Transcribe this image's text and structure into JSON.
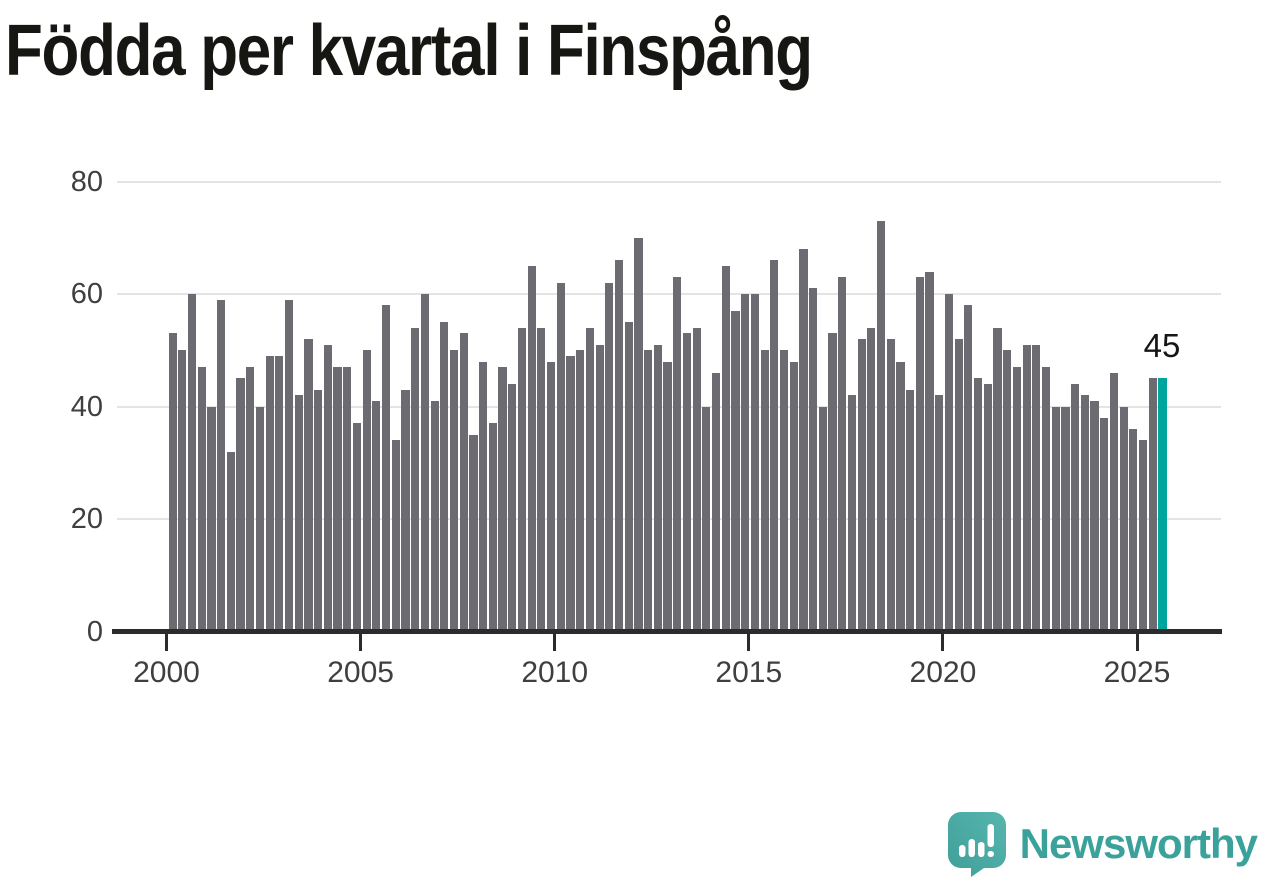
{
  "title": "Födda per kvartal i Finspång",
  "annotation": {
    "latest_value_label": "45"
  },
  "branding": {
    "logo_text": "Newsworthy",
    "logo_icon": "newsworthy-speech-bubble-bar-chart-icon"
  },
  "colors": {
    "bar": "#6c6b71",
    "highlight": "#00a69e",
    "title_text": "#161613",
    "axis_text": "#3f3f3f",
    "gridline": "#e4e4e4",
    "axis_line": "#2b2b2b",
    "logo_teal": "#3aa29b"
  },
  "chart_data": {
    "type": "bar",
    "title": "Födda per kvartal i Finspång",
    "xlabel": "",
    "ylabel": "",
    "ylim": [
      0,
      80
    ],
    "yticks": [
      0,
      20,
      40,
      60,
      80
    ],
    "xticks": [
      2000,
      2005,
      2010,
      2015,
      2020,
      2025
    ],
    "grid": true,
    "legend": false,
    "bar_color": "#6c6b71",
    "highlight": {
      "index": 102,
      "label": "45",
      "color": "#00a69e"
    },
    "x": [
      "2000 Q1",
      "2000 Q2",
      "2000 Q3",
      "2000 Q4",
      "2001 Q1",
      "2001 Q2",
      "2001 Q3",
      "2001 Q4",
      "2002 Q1",
      "2002 Q2",
      "2002 Q3",
      "2002 Q4",
      "2003 Q1",
      "2003 Q2",
      "2003 Q3",
      "2003 Q4",
      "2004 Q1",
      "2004 Q2",
      "2004 Q3",
      "2004 Q4",
      "2005 Q1",
      "2005 Q2",
      "2005 Q3",
      "2005 Q4",
      "2006 Q1",
      "2006 Q2",
      "2006 Q3",
      "2006 Q4",
      "2007 Q1",
      "2007 Q2",
      "2007 Q3",
      "2007 Q4",
      "2008 Q1",
      "2008 Q2",
      "2008 Q3",
      "2008 Q4",
      "2009 Q1",
      "2009 Q2",
      "2009 Q3",
      "2009 Q4",
      "2010 Q1",
      "2010 Q2",
      "2010 Q3",
      "2010 Q4",
      "2011 Q1",
      "2011 Q2",
      "2011 Q3",
      "2011 Q4",
      "2012 Q1",
      "2012 Q2",
      "2012 Q3",
      "2012 Q4",
      "2013 Q1",
      "2013 Q2",
      "2013 Q3",
      "2013 Q4",
      "2014 Q1",
      "2014 Q2",
      "2014 Q3",
      "2014 Q4",
      "2015 Q1",
      "2015 Q2",
      "2015 Q3",
      "2015 Q4",
      "2016 Q1",
      "2016 Q2",
      "2016 Q3",
      "2016 Q4",
      "2017 Q1",
      "2017 Q2",
      "2017 Q3",
      "2017 Q4",
      "2018 Q1",
      "2018 Q2",
      "2018 Q3",
      "2018 Q4",
      "2019 Q1",
      "2019 Q2",
      "2019 Q3",
      "2019 Q4",
      "2020 Q1",
      "2020 Q2",
      "2020 Q3",
      "2020 Q4",
      "2021 Q1",
      "2021 Q2",
      "2021 Q3",
      "2021 Q4",
      "2022 Q1",
      "2022 Q2",
      "2022 Q3",
      "2022 Q4",
      "2023 Q1",
      "2023 Q2",
      "2023 Q3",
      "2023 Q4",
      "2024 Q1",
      "2024 Q2",
      "2024 Q3",
      "2024 Q4",
      "2025 Q1",
      "2025 Q2",
      "2025 Q3"
    ],
    "values": [
      53,
      50,
      60,
      47,
      40,
      59,
      32,
      45,
      47,
      40,
      49,
      49,
      59,
      42,
      52,
      43,
      51,
      47,
      47,
      37,
      50,
      41,
      58,
      34,
      43,
      54,
      60,
      41,
      55,
      50,
      53,
      35,
      48,
      37,
      47,
      44,
      54,
      65,
      54,
      48,
      62,
      49,
      50,
      54,
      51,
      62,
      66,
      55,
      70,
      50,
      51,
      48,
      63,
      53,
      54,
      40,
      46,
      65,
      57,
      60,
      60,
      50,
      66,
      50,
      48,
      68,
      61,
      40,
      53,
      63,
      42,
      52,
      54,
      73,
      52,
      48,
      43,
      63,
      64,
      42,
      60,
      52,
      58,
      45,
      44,
      54,
      50,
      47,
      51,
      51,
      47,
      40,
      40,
      44,
      42,
      41,
      38,
      46,
      40,
      36,
      34,
      45,
      45
    ]
  }
}
